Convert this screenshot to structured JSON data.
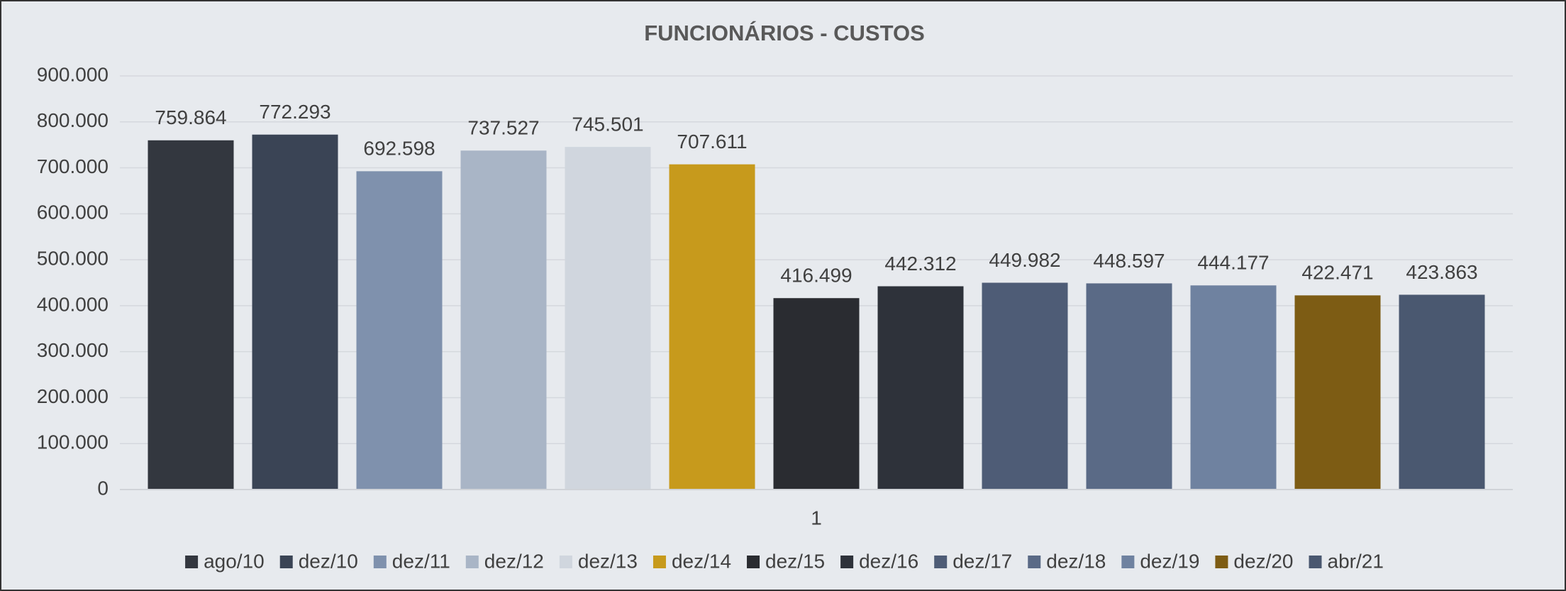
{
  "chart_data": {
    "type": "bar",
    "title": "FUNCIONÁRIOS - CUSTOS",
    "categories": [
      "1"
    ],
    "ylim": [
      0,
      900000
    ],
    "yticks": [
      0,
      {
        "value": 100000,
        "label": "100.000"
      },
      {
        "value": 200000,
        "label": "200.000"
      },
      {
        "value": 300000,
        "label": "300.000"
      },
      {
        "value": 400000,
        "label": "400.000"
      },
      {
        "value": 500000,
        "label": "500.000"
      },
      {
        "value": 600000,
        "label": "600.000"
      },
      {
        "value": 700000,
        "label": "700.000"
      },
      {
        "value": 800000,
        "label": "800.000"
      },
      {
        "value": 900000,
        "label": "900.000"
      }
    ],
    "grid": true,
    "legend": "bottom",
    "series": [
      {
        "name": "ago/10",
        "color": "#33373f",
        "values": [
          759864
        ],
        "value_labels": [
          "759.864"
        ]
      },
      {
        "name": "dez/10",
        "color": "#3a4455",
        "values": [
          772293
        ],
        "value_labels": [
          "772.293"
        ]
      },
      {
        "name": "dez/11",
        "color": "#7f91ad",
        "values": [
          692598
        ],
        "value_labels": [
          "692.598"
        ]
      },
      {
        "name": "dez/12",
        "color": "#a9b5c6",
        "values": [
          737527
        ],
        "value_labels": [
          "737.527"
        ]
      },
      {
        "name": "dez/13",
        "color": "#d0d6de",
        "values": [
          745501
        ],
        "value_labels": [
          "745.501"
        ]
      },
      {
        "name": "dez/14",
        "color": "#c79a1c",
        "values": [
          707611
        ],
        "value_labels": [
          "707.611"
        ]
      },
      {
        "name": "dez/15",
        "color": "#2a2c31",
        "values": [
          416499
        ],
        "value_labels": [
          "416.499"
        ]
      },
      {
        "name": "dez/16",
        "color": "#2e323a",
        "values": [
          442312
        ],
        "value_labels": [
          "442.312"
        ]
      },
      {
        "name": "dez/17",
        "color": "#4e5c76",
        "values": [
          449982
        ],
        "value_labels": [
          "449.982"
        ]
      },
      {
        "name": "dez/18",
        "color": "#5a6a86",
        "values": [
          448597
        ],
        "value_labels": [
          "448.597"
        ]
      },
      {
        "name": "dez/19",
        "color": "#6f82a0",
        "values": [
          444177
        ],
        "value_labels": [
          "444.177"
        ]
      },
      {
        "name": "dez/20",
        "color": "#7d5c14",
        "values": [
          422471
        ],
        "value_labels": [
          "422.471"
        ]
      },
      {
        "name": "abr/21",
        "color": "#4a5870",
        "values": [
          423863
        ],
        "value_labels": [
          "423.863"
        ]
      }
    ]
  }
}
